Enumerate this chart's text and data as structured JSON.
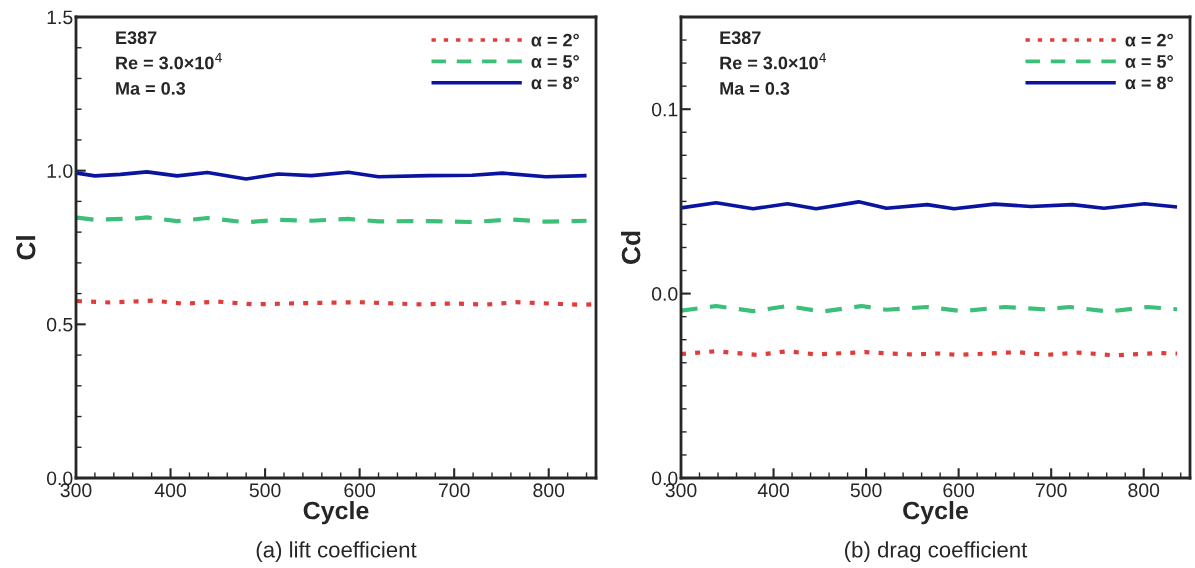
{
  "chart_data": [
    {
      "type": "line",
      "title": "(a) lift coefficient",
      "xlabel": "Cycle",
      "ylabel": "Cl",
      "xlim": [
        300,
        850
      ],
      "xticks": [
        300,
        400,
        500,
        600,
        700,
        800
      ],
      "ylim": [
        0,
        1.5
      ],
      "yticks": [
        {
          "value": 0,
          "label": "0.0"
        },
        0.5,
        {
          "value": 1,
          "label": "1.0"
        },
        1.5
      ],
      "legend": "top right",
      "grid": false,
      "annotations": [
        "E387",
        "Re = 3.0×10$^{4}$",
        "Ma = 0.3"
      ],
      "series": [
        {
          "name": "α = 2°",
          "color": "#e03c3c",
          "line_style": "dotted",
          "x": [
            301,
            336,
            382,
            414,
            450,
            488,
            542,
            599,
            662,
            701,
            733,
            765,
            833,
            850
          ],
          "values": [
            0.576,
            0.571,
            0.577,
            0.567,
            0.574,
            0.565,
            0.569,
            0.572,
            0.565,
            0.568,
            0.564,
            0.572,
            0.564,
            0.565
          ]
        },
        {
          "name": "α = 5°",
          "color": "#3cbf78",
          "line_style": "dashed",
          "x": [
            301,
            320,
            366,
            375,
            407,
            439,
            480,
            514,
            549,
            588,
            620,
            673,
            719,
            760,
            797,
            840
          ],
          "values": [
            0.847,
            0.84,
            0.845,
            0.848,
            0.836,
            0.846,
            0.832,
            0.84,
            0.837,
            0.843,
            0.835,
            0.836,
            0.833,
            0.841,
            0.834,
            0.837
          ]
        },
        {
          "name": "α = 8°",
          "color": "#0a14a0",
          "line_style": "solid",
          "x": [
            301,
            320,
            347,
            375,
            407,
            439,
            480,
            514,
            549,
            588,
            620,
            673,
            719,
            751,
            797,
            840
          ],
          "values": [
            0.992,
            0.983,
            0.988,
            0.996,
            0.983,
            0.994,
            0.973,
            0.989,
            0.984,
            0.995,
            0.98,
            0.984,
            0.985,
            0.992,
            0.98,
            0.984
          ]
        }
      ]
    },
    {
      "type": "line",
      "title": "(b) drag coefficient",
      "xlabel": "Cycle",
      "ylabel": "Cd",
      "xlim": [
        300,
        850
      ],
      "xticks": [
        300,
        400,
        500,
        600,
        700,
        800
      ],
      "ylim": [
        0,
        0.1
      ],
      "yticks": [
        {
          "value": 0,
          "label": "0.0"
        },
        {
          "value": 0.04,
          "label": "0.0"
        },
        {
          "value": 0.08,
          "label": "0.1"
        }
      ],
      "legend": "top right",
      "grid": false,
      "annotations": [
        "E387",
        "Re = 3.0×10$^{4}$",
        "Ma = 0.3"
      ],
      "series": [
        {
          "name": "α = 2°",
          "color": "#e03c3c",
          "line_style": "dotted",
          "x": [
            300,
            338,
            383,
            415,
            446,
            499,
            548,
            580,
            599,
            664,
            695,
            730,
            769,
            815,
            836
          ],
          "values": [
            0.0269,
            0.0275,
            0.0267,
            0.0275,
            0.0268,
            0.0273,
            0.0268,
            0.027,
            0.0267,
            0.0273,
            0.0267,
            0.0272,
            0.0266,
            0.0271,
            0.027
          ]
        },
        {
          "name": "α = 5°",
          "color": "#3cbf78",
          "line_style": "dashed",
          "x": [
            300,
            338,
            378,
            415,
            453,
            495,
            522,
            566,
            604,
            650,
            692,
            720,
            762,
            804,
            836
          ],
          "values": [
            0.0363,
            0.0373,
            0.0362,
            0.0373,
            0.0361,
            0.0373,
            0.0365,
            0.0371,
            0.0362,
            0.0371,
            0.0366,
            0.0371,
            0.0361,
            0.0371,
            0.0366
          ]
        },
        {
          "name": "α = 8°",
          "color": "#0a14a0",
          "line_style": "solid",
          "x": [
            300,
            338,
            378,
            415,
            446,
            492,
            522,
            566,
            595,
            639,
            678,
            723,
            757,
            801,
            836
          ],
          "values": [
            0.0586,
            0.0597,
            0.0584,
            0.0595,
            0.0584,
            0.0599,
            0.0585,
            0.0593,
            0.0584,
            0.0594,
            0.0589,
            0.0593,
            0.0585,
            0.0595,
            0.0588
          ]
        }
      ]
    }
  ]
}
